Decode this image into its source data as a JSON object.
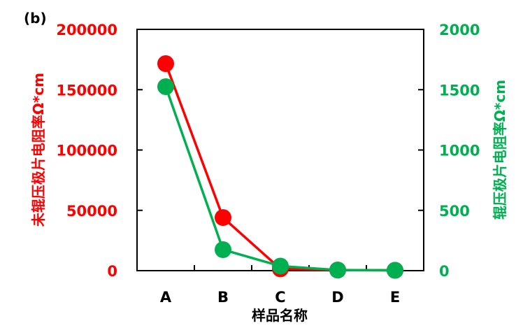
{
  "chart_data": {
    "type": "line",
    "panel_label": "(b)",
    "categories": [
      "A",
      "B",
      "C",
      "D",
      "E"
    ],
    "xlabel": "样品名称",
    "y_left": {
      "label": "未辊压极片电阻率Ω*cm",
      "ylim": [
        0,
        200000
      ],
      "ticks": [
        "0",
        "50000",
        "100000",
        "150000",
        "200000"
      ],
      "color": "#ff0000"
    },
    "y_right": {
      "label": "辊压极片电阻率Ω*cm",
      "ylim": [
        0,
        2000
      ],
      "ticks": [
        "0",
        "500",
        "1000",
        "1500",
        "2000"
      ],
      "color": "#00b050"
    },
    "series": [
      {
        "axis": "left",
        "color": "#ff0000",
        "values": [
          171600,
          44000,
          1500,
          500,
          300
        ]
      },
      {
        "axis": "right",
        "color": "#00b050",
        "values": [
          1525,
          174,
          38,
          5,
          3
        ]
      }
    ],
    "grid": false
  }
}
